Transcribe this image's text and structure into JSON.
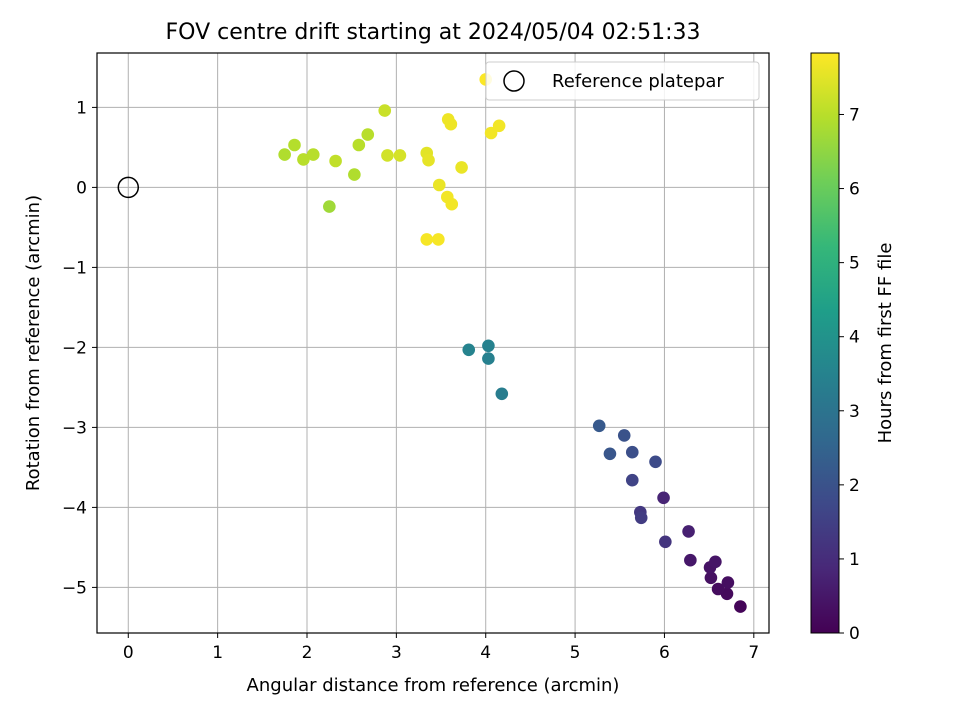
{
  "chart_data": {
    "type": "scatter",
    "title": "FOV centre drift starting at 2024/05/04 02:51:33",
    "xlabel": "Angular distance from reference (arcmin)",
    "ylabel": "Rotation from reference (arcmin)",
    "xlim": [
      -0.35,
      7.17
    ],
    "ylim": [
      -5.57,
      1.68
    ],
    "xticks": [
      0,
      1,
      2,
      3,
      4,
      5,
      6,
      7
    ],
    "xtick_labels": [
      "0",
      "1",
      "2",
      "3",
      "4",
      "5",
      "6",
      "7"
    ],
    "yticks": [
      -5,
      -4,
      -3,
      -2,
      -1,
      0,
      1
    ],
    "ytick_labels": [
      "−5",
      "−4",
      "−3",
      "−2",
      "−1",
      "0",
      "1"
    ],
    "grid": true,
    "legend": {
      "position": "top-right",
      "entries": [
        "Reference platepar"
      ]
    },
    "reference_point": {
      "x": 0,
      "y": 0,
      "marker": "open-circle",
      "color": "#000000"
    },
    "colorbar": {
      "label": "Hours from first FF file",
      "range": [
        0,
        7.83
      ],
      "ticks": [
        0,
        1,
        2,
        3,
        4,
        5,
        6,
        7
      ],
      "colormap": "viridis",
      "colormap_stops": [
        "#440154",
        "#482878",
        "#3e4989",
        "#31688e",
        "#26828e",
        "#1f9e89",
        "#35b779",
        "#6ece58",
        "#b5de2b",
        "#fde725"
      ]
    },
    "points": [
      {
        "x": 6.85,
        "y": -5.24,
        "t": 0.1
      },
      {
        "x": 6.7,
        "y": -5.08,
        "t": 0.2
      },
      {
        "x": 6.6,
        "y": -5.02,
        "t": 0.25
      },
      {
        "x": 6.71,
        "y": -4.94,
        "t": 0.3
      },
      {
        "x": 6.52,
        "y": -4.88,
        "t": 0.35
      },
      {
        "x": 6.51,
        "y": -4.75,
        "t": 0.4
      },
      {
        "x": 6.57,
        "y": -4.68,
        "t": 0.45
      },
      {
        "x": 6.29,
        "y": -4.66,
        "t": 0.5
      },
      {
        "x": 6.27,
        "y": -4.3,
        "t": 0.7
      },
      {
        "x": 5.99,
        "y": -3.88,
        "t": 0.8
      },
      {
        "x": 6.01,
        "y": -4.43,
        "t": 1.2
      },
      {
        "x": 5.73,
        "y": -4.06,
        "t": 1.3
      },
      {
        "x": 5.74,
        "y": -4.13,
        "t": 1.4
      },
      {
        "x": 5.64,
        "y": -3.66,
        "t": 1.6
      },
      {
        "x": 5.9,
        "y": -3.43,
        "t": 1.8
      },
      {
        "x": 5.64,
        "y": -3.31,
        "t": 1.9
      },
      {
        "x": 5.55,
        "y": -3.1,
        "t": 2.0
      },
      {
        "x": 5.39,
        "y": -3.33,
        "t": 2.1
      },
      {
        "x": 5.27,
        "y": -2.98,
        "t": 2.2
      },
      {
        "x": 4.18,
        "y": -2.58,
        "t": 3.3
      },
      {
        "x": 4.03,
        "y": -2.14,
        "t": 3.4
      },
      {
        "x": 4.03,
        "y": -1.98,
        "t": 3.45
      },
      {
        "x": 3.81,
        "y": -2.03,
        "t": 3.5
      },
      {
        "x": 2.25,
        "y": -0.24,
        "t": 6.7
      },
      {
        "x": 1.75,
        "y": 0.41,
        "t": 6.9
      },
      {
        "x": 1.86,
        "y": 0.53,
        "t": 6.95
      },
      {
        "x": 1.96,
        "y": 0.35,
        "t": 7.0
      },
      {
        "x": 2.07,
        "y": 0.41,
        "t": 7.0
      },
      {
        "x": 2.53,
        "y": 0.16,
        "t": 6.9
      },
      {
        "x": 2.58,
        "y": 0.53,
        "t": 7.0
      },
      {
        "x": 2.68,
        "y": 0.66,
        "t": 7.0
      },
      {
        "x": 2.32,
        "y": 0.33,
        "t": 7.1
      },
      {
        "x": 2.87,
        "y": 0.96,
        "t": 7.2
      },
      {
        "x": 2.9,
        "y": 0.4,
        "t": 7.3
      },
      {
        "x": 3.04,
        "y": 0.4,
        "t": 7.35
      },
      {
        "x": 3.34,
        "y": 0.43,
        "t": 7.5
      },
      {
        "x": 3.36,
        "y": 0.34,
        "t": 7.55
      },
      {
        "x": 3.48,
        "y": 0.03,
        "t": 7.6
      },
      {
        "x": 3.73,
        "y": 0.25,
        "t": 7.6
      },
      {
        "x": 3.58,
        "y": 0.85,
        "t": 7.65
      },
      {
        "x": 3.61,
        "y": 0.79,
        "t": 7.65
      },
      {
        "x": 3.57,
        "y": -0.12,
        "t": 7.7
      },
      {
        "x": 3.62,
        "y": -0.21,
        "t": 7.7
      },
      {
        "x": 3.34,
        "y": -0.65,
        "t": 7.75
      },
      {
        "x": 3.47,
        "y": -0.65,
        "t": 7.75
      },
      {
        "x": 4.06,
        "y": 0.68,
        "t": 7.7
      },
      {
        "x": 4.15,
        "y": 0.77,
        "t": 7.7
      },
      {
        "x": 4.0,
        "y": 1.35,
        "t": 7.8
      }
    ]
  }
}
